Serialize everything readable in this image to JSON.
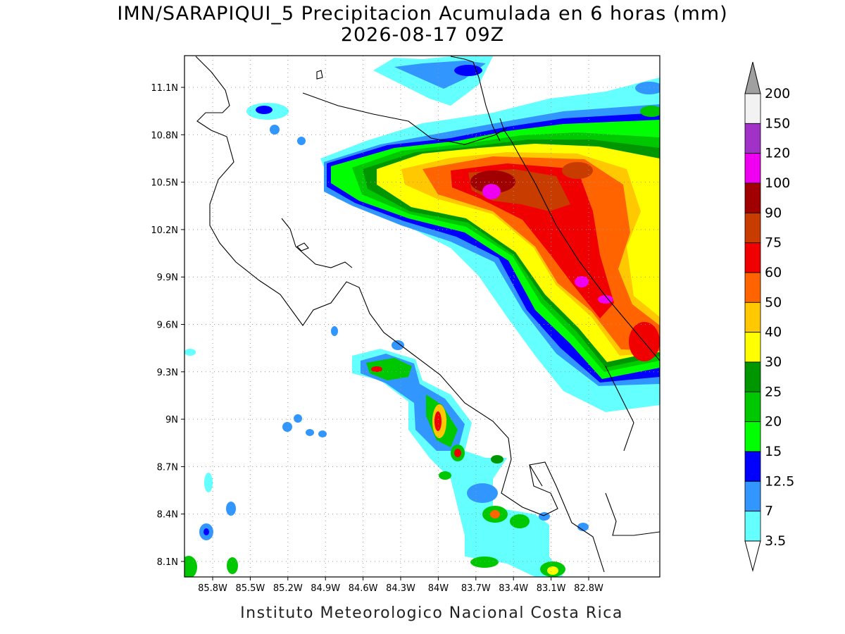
{
  "header": {
    "title": "IMN/SARAPIQUI_5 Precipitacion Acumulada en 6 horas (mm)",
    "subtitle": "2026-08-17 09Z"
  },
  "map": {
    "x_labels": [
      "85.8W",
      "85.5W",
      "85.2W",
      "84.9W",
      "84.6W",
      "84.3W",
      "84W",
      "83.7W",
      "83.4W",
      "83.1W",
      "82.8W"
    ],
    "y_labels": [
      "11.1N",
      "10.8N",
      "10.5N",
      "10.2N",
      "9.9N",
      "9.6N",
      "9.3N",
      "9N",
      "8.7N",
      "8.4N",
      "8.1N"
    ]
  },
  "colorbar": {
    "labels": [
      "200",
      "150",
      "120",
      "100",
      "90",
      "75",
      "60",
      "50",
      "40",
      "30",
      "25",
      "20",
      "15",
      "12.5",
      "7",
      "3.5"
    ],
    "colors": [
      "#f2f2f2",
      "#a032c8",
      "#f000f0",
      "#a00000",
      "#c83c00",
      "#f00000",
      "#ff6400",
      "#ffc800",
      "#ffff00",
      "#009600",
      "#00c800",
      "#00ff00",
      "#0000ff",
      "#3296ff",
      "#64ffff"
    ],
    "over_color": "#a0a0a0",
    "under_color": "#ffffff"
  },
  "footer": "Instituto Meteorologico Nacional Costa Rica"
}
